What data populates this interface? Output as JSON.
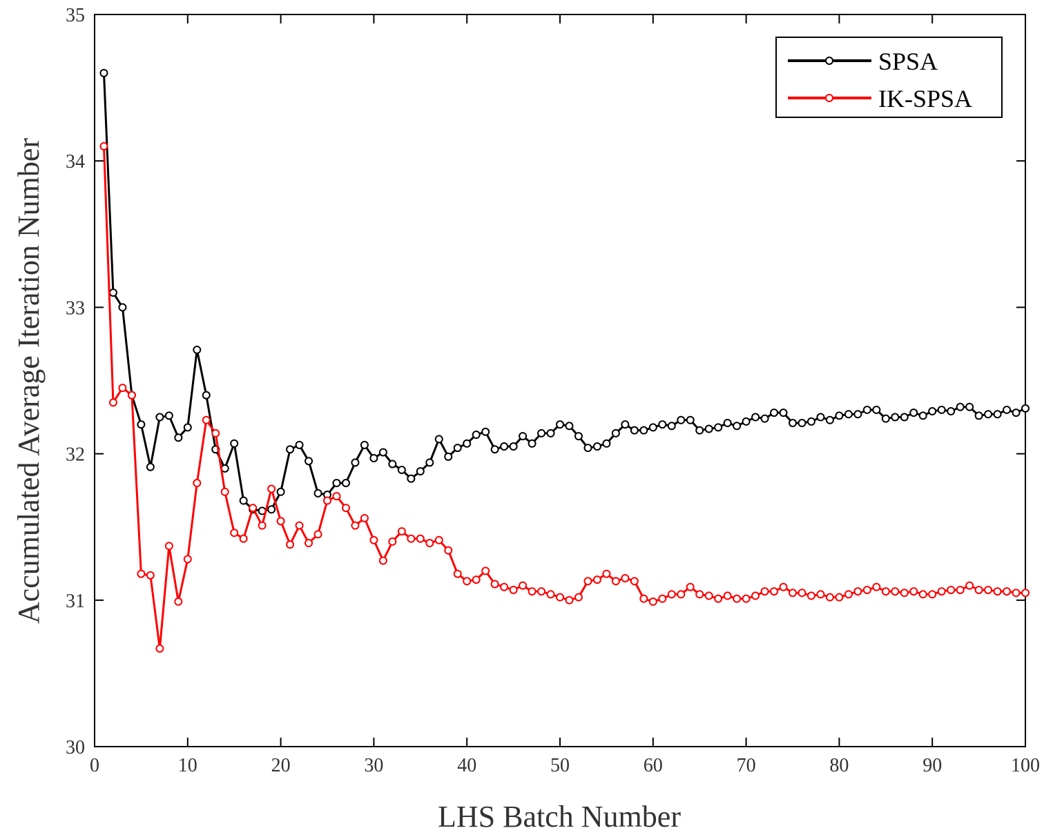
{
  "chart_data": {
    "type": "line",
    "title": "",
    "xlabel": "LHS Batch Number",
    "ylabel": "Accumulated Average Iteration Number",
    "xlim": [
      0,
      100
    ],
    "ylim": [
      30,
      35
    ],
    "xticks": [
      "0",
      "10",
      "20",
      "30",
      "40",
      "50",
      "60",
      "70",
      "80",
      "90",
      "100"
    ],
    "yticks": [
      "30",
      "31",
      "32",
      "33",
      "34",
      "35"
    ],
    "grid": false,
    "legend_position": "top-right",
    "x": [
      1,
      2,
      3,
      4,
      5,
      6,
      7,
      8,
      9,
      10,
      11,
      12,
      13,
      14,
      15,
      16,
      17,
      18,
      19,
      20,
      21,
      22,
      23,
      24,
      25,
      26,
      27,
      28,
      29,
      30,
      31,
      32,
      33,
      34,
      35,
      36,
      37,
      38,
      39,
      40,
      41,
      42,
      43,
      44,
      45,
      46,
      47,
      48,
      49,
      50,
      51,
      52,
      53,
      54,
      55,
      56,
      57,
      58,
      59,
      60,
      61,
      62,
      63,
      64,
      65,
      66,
      67,
      68,
      69,
      70,
      71,
      72,
      73,
      74,
      75,
      76,
      77,
      78,
      79,
      80,
      81,
      82,
      83,
      84,
      85,
      86,
      87,
      88,
      89,
      90,
      91,
      92,
      93,
      94,
      95,
      96,
      97,
      98,
      99,
      100
    ],
    "series": [
      {
        "name": "SPSA",
        "color": "#000000",
        "values": [
          34.6,
          33.1,
          33.0,
          32.4,
          32.2,
          31.91,
          32.25,
          32.26,
          32.11,
          32.18,
          32.71,
          32.4,
          32.03,
          31.9,
          32.07,
          31.68,
          31.62,
          31.61,
          31.62,
          31.74,
          32.03,
          32.06,
          31.95,
          31.73,
          31.72,
          31.8,
          31.8,
          31.94,
          32.06,
          31.97,
          32.01,
          31.93,
          31.89,
          31.83,
          31.88,
          31.94,
          32.1,
          31.98,
          32.04,
          32.07,
          32.13,
          32.15,
          32.03,
          32.05,
          32.05,
          32.12,
          32.07,
          32.14,
          32.14,
          32.2,
          32.19,
          32.12,
          32.04,
          32.05,
          32.07,
          32.14,
          32.2,
          32.16,
          32.16,
          32.18,
          32.2,
          32.19,
          32.23,
          32.23,
          32.16,
          32.17,
          32.18,
          32.21,
          32.19,
          32.22,
          32.25,
          32.24,
          32.28,
          32.28,
          32.21,
          32.21,
          32.22,
          32.25,
          32.23,
          32.26,
          32.27,
          32.27,
          32.3,
          32.3,
          32.24,
          32.25,
          32.25,
          32.28,
          32.26,
          32.29,
          32.3,
          32.29,
          32.32,
          32.32,
          32.26,
          32.27,
          32.27,
          32.3,
          32.28,
          32.31
        ]
      },
      {
        "name": "IK-SPSA",
        "color": "#ff0000",
        "values": [
          34.1,
          32.35,
          32.45,
          32.4,
          31.18,
          31.17,
          30.67,
          31.37,
          30.99,
          31.28,
          31.8,
          32.23,
          32.14,
          31.74,
          31.46,
          31.42,
          31.63,
          31.51,
          31.76,
          31.54,
          31.38,
          31.51,
          31.39,
          31.45,
          31.68,
          31.71,
          31.63,
          31.51,
          31.56,
          31.41,
          31.27,
          31.4,
          31.47,
          31.42,
          31.42,
          31.39,
          31.41,
          31.34,
          31.18,
          31.13,
          31.14,
          31.2,
          31.11,
          31.09,
          31.07,
          31.1,
          31.06,
          31.06,
          31.04,
          31.02,
          31.0,
          31.02,
          31.13,
          31.14,
          31.18,
          31.13,
          31.15,
          31.13,
          31.01,
          30.99,
          31.01,
          31.04,
          31.04,
          31.09,
          31.04,
          31.03,
          31.01,
          31.03,
          31.01,
          31.01,
          31.03,
          31.06,
          31.06,
          31.09,
          31.05,
          31.05,
          31.03,
          31.04,
          31.02,
          31.02,
          31.04,
          31.06,
          31.07,
          31.09,
          31.06,
          31.06,
          31.05,
          31.06,
          31.04,
          31.04,
          31.06,
          31.07,
          31.07,
          31.1,
          31.07,
          31.07,
          31.06,
          31.06,
          31.05,
          31.05
        ]
      }
    ]
  }
}
